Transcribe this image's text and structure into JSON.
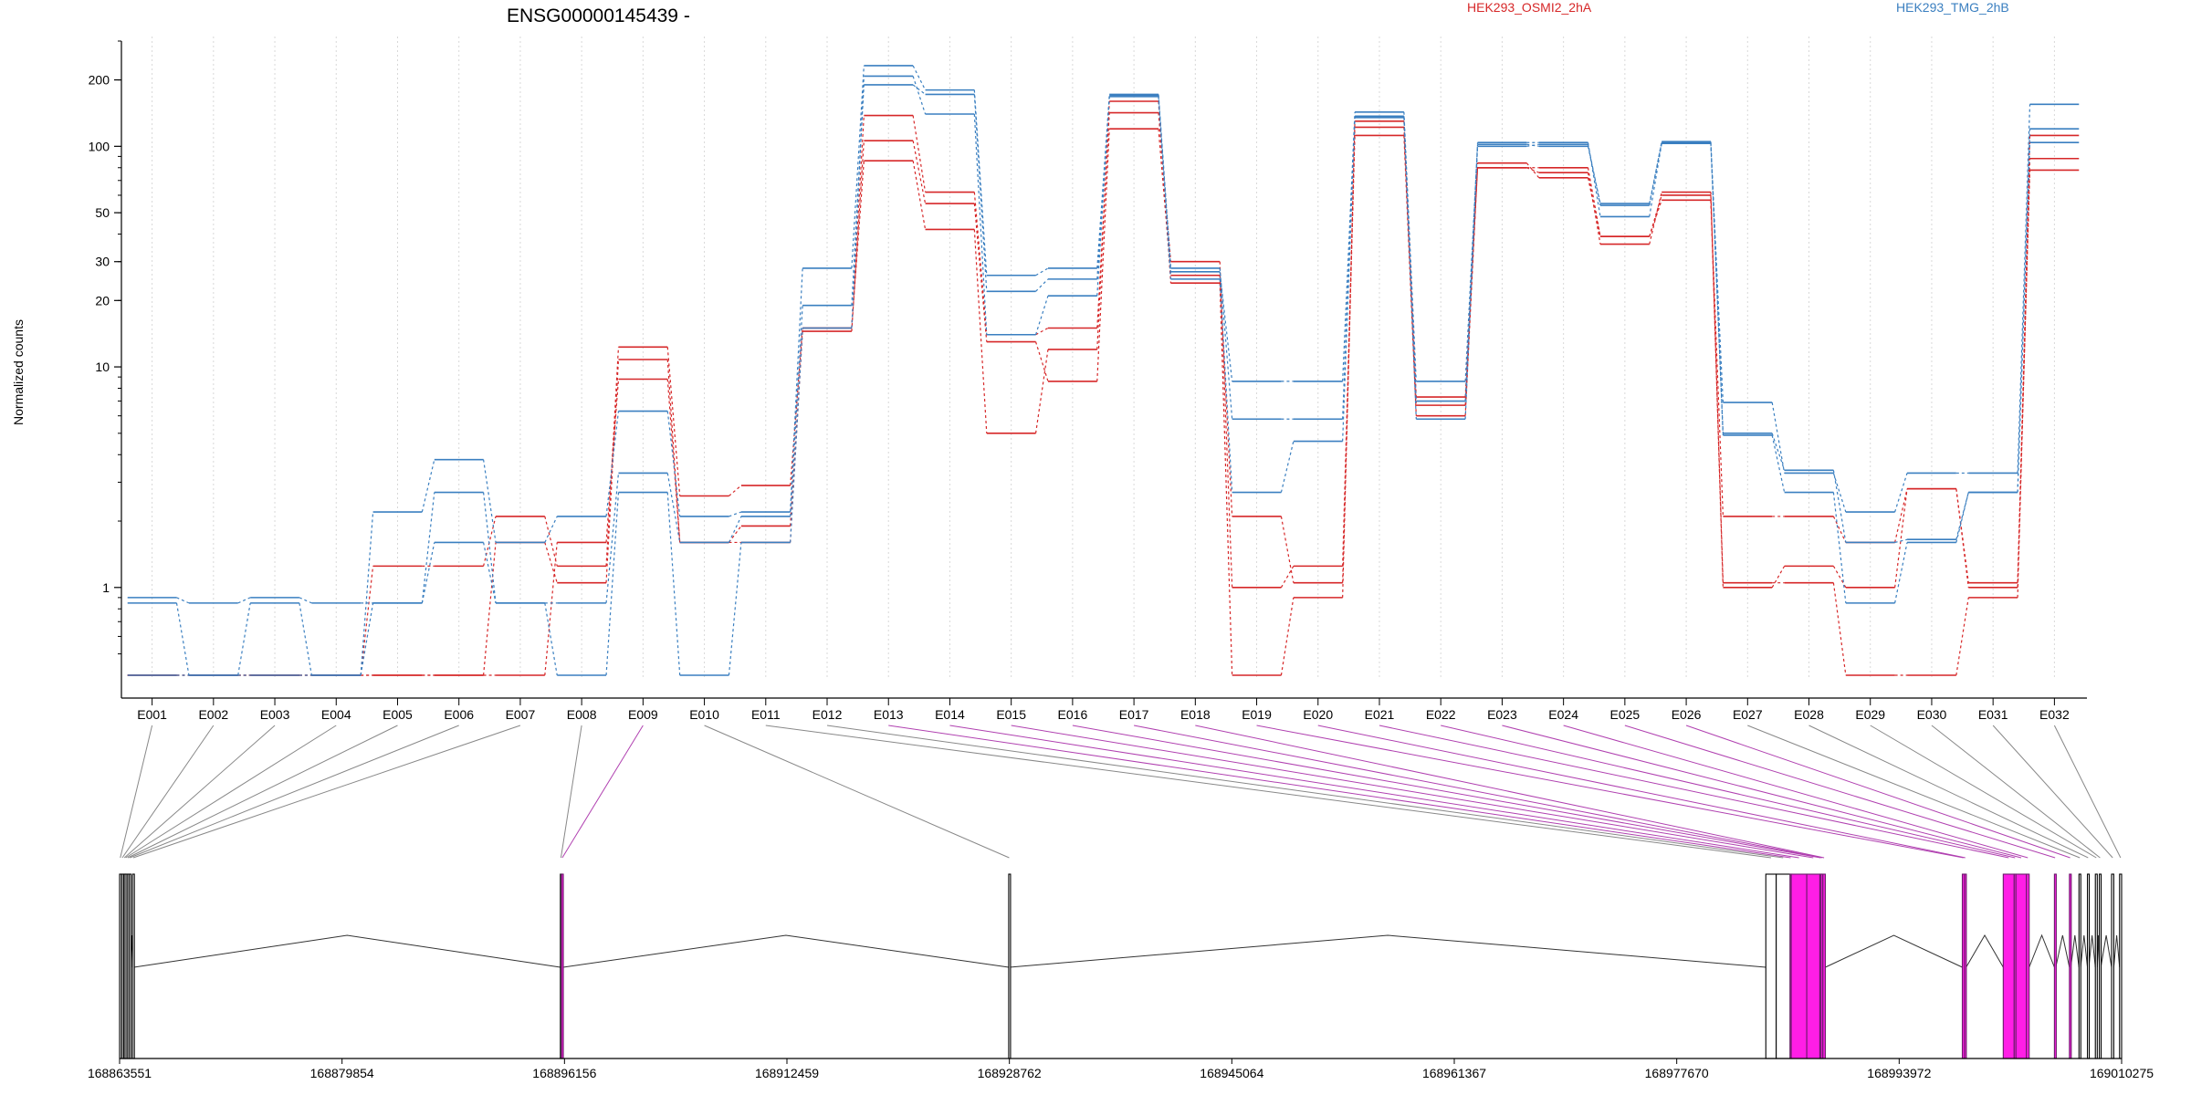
{
  "chart_data": [
    {
      "type": "line",
      "title": "ENSG00000145439 -",
      "ylabel": "Normalized counts",
      "xlabel": "",
      "yscale": "log",
      "ylim": [
        0.4,
        300
      ],
      "yticks": [
        1,
        10,
        20,
        30,
        50,
        100,
        200
      ],
      "ytick_labels": [
        "1",
        "10",
        "20",
        "30",
        "50",
        "100",
        "200"
      ],
      "grid": "vertical dotted per exon",
      "legend": [
        {
          "name": "HEK293_OSMI2_2hA",
          "color": "#d62728"
        },
        {
          "name": "HEK293_TMG_2hB",
          "color": "#3a7fc0"
        }
      ],
      "legend_position": "top-right",
      "categories": [
        "E001",
        "E002",
        "E003",
        "E004",
        "E005",
        "E006",
        "E007",
        "E008",
        "E009",
        "E010",
        "E011",
        "E012",
        "E013",
        "E014",
        "E015",
        "E016",
        "E017",
        "E018",
        "E019",
        "E020",
        "E021",
        "E022",
        "E023",
        "E024",
        "E025",
        "E026",
        "E027",
        "E028",
        "E029",
        "E030",
        "E031",
        "E032"
      ],
      "series": [
        {
          "group": "HEK293_OSMI2_2hA",
          "color": "#d62728",
          "values": [
            0.4,
            0.4,
            0.4,
            0.4,
            1.25,
            1.25,
            2.1,
            1.25,
            12.3,
            2.6,
            2.9,
            15.0,
            138,
            62,
            14,
            15,
            142,
            30,
            1.0,
            1.25,
            122,
            6.7,
            80,
            80,
            39,
            60,
            1.0,
            1.25,
            1.0,
            2.8,
            1.0,
            112
          ]
        },
        {
          "group": "HEK293_OSMI2_2hA",
          "color": "#d62728",
          "values": [
            0.4,
            0.4,
            0.4,
            0.4,
            0.4,
            0.4,
            1.6,
            1.05,
            10.8,
            1.6,
            1.9,
            14.5,
            106,
            55,
            13,
            8.6,
            120,
            26,
            2.1,
            1.05,
            112,
            6.0,
            84,
            72,
            39,
            57,
            2.1,
            2.1,
            1.6,
            2.8,
            1.05,
            78
          ]
        },
        {
          "group": "HEK293_OSMI2_2hA",
          "color": "#d62728",
          "values": [
            0.4,
            0.4,
            0.4,
            0.4,
            0.4,
            0.4,
            0.4,
            1.6,
            8.8,
            1.6,
            1.6,
            15.0,
            86,
            42,
            5.0,
            12,
            160,
            24,
            0.4,
            0.9,
            130,
            7.3,
            80,
            76,
            36,
            62,
            1.05,
            1.05,
            0.4,
            0.4,
            0.9,
            88
          ]
        },
        {
          "group": "HEK293_TMG_2hB",
          "color": "#3a7fc0",
          "values": [
            0.85,
            0.4,
            0.85,
            0.4,
            2.2,
            3.8,
            1.6,
            2.1,
            6.3,
            2.1,
            2.2,
            28,
            232,
            180,
            26,
            28,
            170,
            27,
            8.6,
            8.6,
            143,
            8.6,
            102,
            100,
            55,
            104,
            6.9,
            3.3,
            2.2,
            3.3,
            3.3,
            155
          ]
        },
        {
          "group": "HEK293_TMG_2hB",
          "color": "#3a7fc0",
          "values": [
            0.9,
            0.85,
            0.9,
            0.85,
            0.85,
            1.6,
            0.85,
            0.85,
            3.3,
            1.6,
            2.1,
            19,
            190,
            172,
            22,
            25,
            168,
            25,
            2.7,
            4.6,
            135,
            7.0,
            104,
            104,
            48,
            103,
            4.9,
            2.7,
            0.85,
            1.6,
            2.7,
            120
          ]
        },
        {
          "group": "HEK293_TMG_2hB",
          "color": "#3a7fc0",
          "values": [
            0.4,
            0.4,
            0.4,
            0.4,
            0.85,
            2.7,
            0.85,
            0.4,
            2.7,
            0.4,
            1.6,
            15,
            208,
            140,
            14,
            21,
            172,
            28,
            5.8,
            5.8,
            137,
            5.8,
            100,
            102,
            54,
            105,
            5.0,
            3.4,
            1.6,
            1.65,
            2.7,
            104
          ]
        }
      ]
    },
    {
      "type": "gene-model",
      "xticks": [
        "168863551",
        "168879854",
        "168896156",
        "168912459",
        "168928762",
        "168945064",
        "168961367",
        "168977670",
        "168993972",
        "169010275"
      ],
      "highlight_color": "#ff1ee6",
      "exon_labels": [
        "E001",
        "E002",
        "E003",
        "E004",
        "E005",
        "E006",
        "E007",
        "E008",
        "E009",
        "E010",
        "E011",
        "E012",
        "E013",
        "E014",
        "E015",
        "E016",
        "E017",
        "E018",
        "E019",
        "E020",
        "E021",
        "E022",
        "E023",
        "E024",
        "E025",
        "E026",
        "E027",
        "E028",
        "E029",
        "E030",
        "E031",
        "E032"
      ],
      "highlighted_exons": [
        "E009",
        "E013",
        "E014",
        "E015",
        "E016",
        "E017",
        "E018",
        "E019",
        "E020",
        "E021",
        "E022",
        "E023",
        "E024",
        "E025",
        "E026"
      ]
    }
  ]
}
